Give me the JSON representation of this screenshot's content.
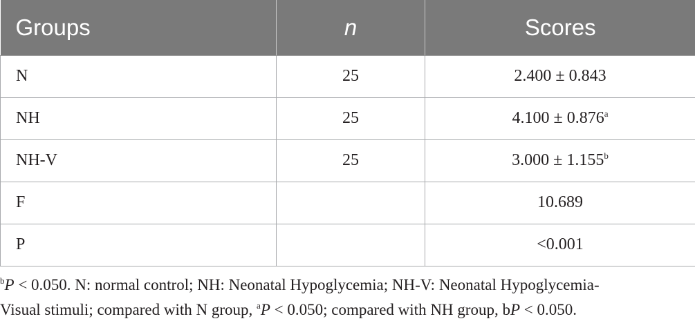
{
  "table": {
    "headers": {
      "groups": "Groups",
      "n": "n",
      "scores": "Scores"
    },
    "rows": [
      {
        "group": "N",
        "n": "25",
        "score": "2.400 ± 0.843",
        "sup": ""
      },
      {
        "group": "NH",
        "n": "25",
        "score": "4.100 ± 0.876",
        "sup": "a"
      },
      {
        "group": "NH-V",
        "n": "25",
        "score": "3.000 ± 1.155",
        "sup": "b"
      },
      {
        "group": "F",
        "n": "",
        "score": "10.689",
        "sup": ""
      },
      {
        "group": "P",
        "n": "",
        "score": "<0.001",
        "sup": ""
      }
    ]
  },
  "footnote": {
    "line1": {
      "sup": "b",
      "p_letter": "P",
      "text": " < 0.050. N: normal control; NH: Neonatal Hypoglycemia; NH-V: Neonatal Hypoglycemia-"
    },
    "line2": {
      "text_a": "Visual stimuli; compared with N group, ",
      "sup_a": "a",
      "p_letter_a": "P",
      "text_b": " < 0.050; compared with NH group, b",
      "p_letter_b": "P",
      "text_c": " < 0.050."
    }
  }
}
